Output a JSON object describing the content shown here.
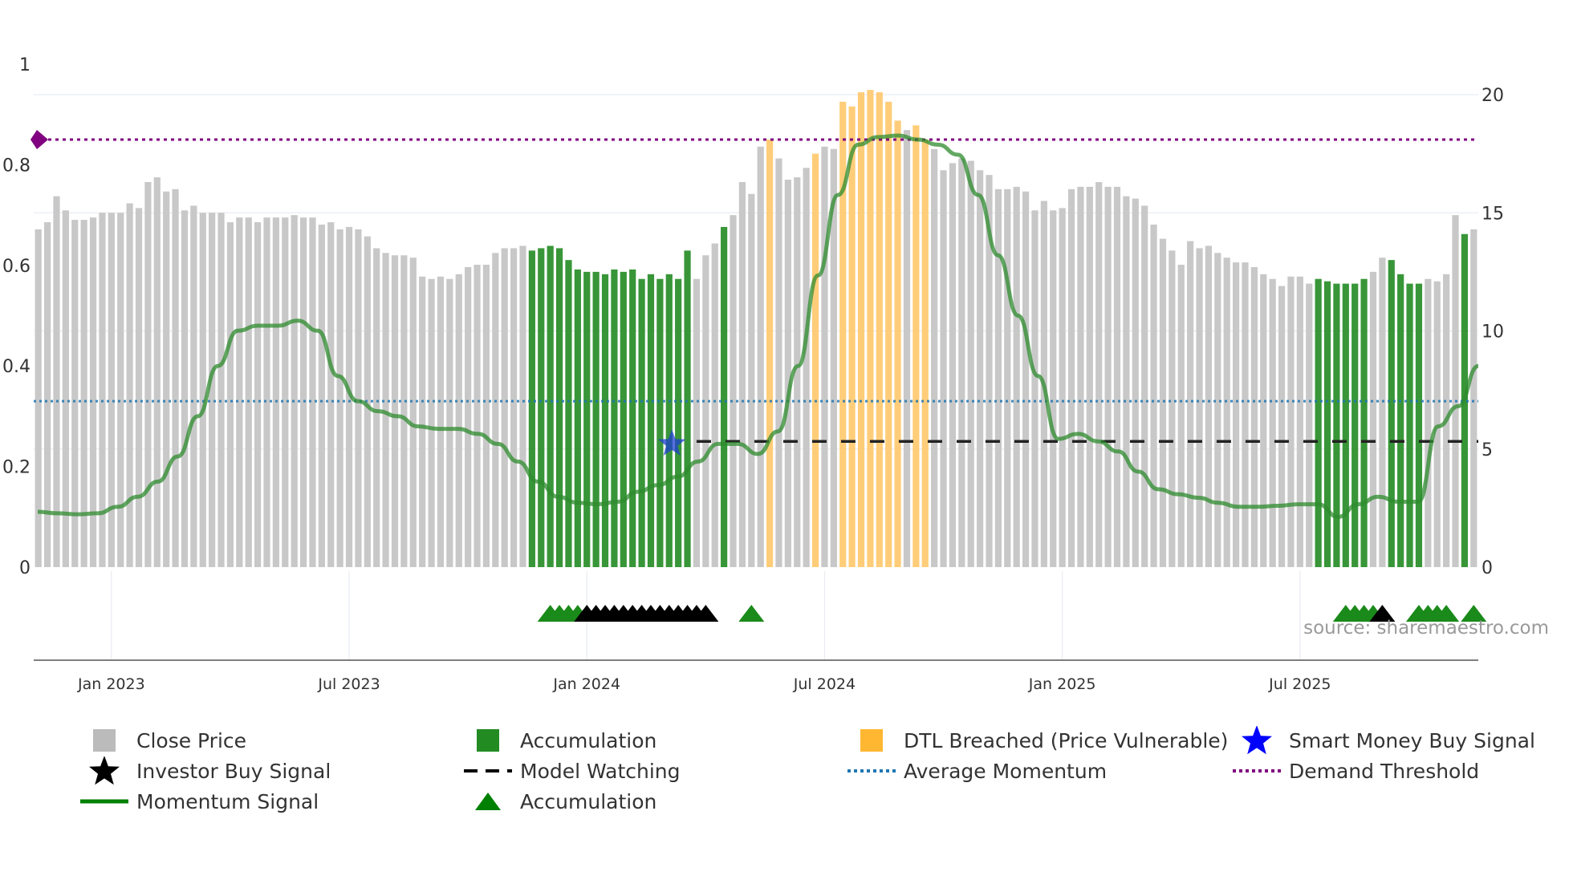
{
  "chart_data": {
    "type": "bar",
    "title": "",
    "watermark": "source: sharemaestro.com",
    "x_tick_labels": [
      "Jan 2023",
      "Jul 2023",
      "Jan 2024",
      "Jul 2024",
      "Jan 2025",
      "Jul 2025"
    ],
    "left_axis": {
      "range": [
        0,
        1
      ],
      "ticks": [
        "0",
        "0.2",
        "0.4",
        "0.6",
        "0.8",
        "1"
      ]
    },
    "right_axis": {
      "range": [
        0,
        20
      ],
      "ticks": [
        "0",
        "5",
        "10",
        "15",
        "20"
      ]
    },
    "close_price_weekly": [
      14.3,
      14.6,
      15.7,
      15.1,
      14.7,
      14.7,
      14.8,
      15.0,
      15.0,
      15.0,
      15.4,
      15.2,
      16.3,
      16.5,
      15.9,
      16.0,
      15.1,
      15.3,
      15.0,
      15.0,
      15.0,
      14.6,
      14.8,
      14.8,
      14.6,
      14.8,
      14.8,
      14.8,
      14.9,
      14.8,
      14.8,
      14.5,
      14.6,
      14.3,
      14.4,
      14.3,
      14.0,
      13.5,
      13.3,
      13.2,
      13.2,
      13.1,
      12.3,
      12.2,
      12.3,
      12.2,
      12.4,
      12.7,
      12.8,
      12.8,
      13.3,
      13.5,
      13.5,
      13.6,
      13.4,
      13.5,
      13.6,
      13.5,
      13.0,
      12.6,
      12.5,
      12.5,
      12.4,
      12.6,
      12.5,
      12.6,
      12.2,
      12.4,
      12.2,
      12.4,
      12.2,
      13.4,
      12.2,
      13.2,
      13.7,
      14.4,
      14.9,
      16.3,
      15.8,
      17.8,
      18.1,
      17.3,
      16.4,
      16.5,
      16.9,
      17.5,
      17.8,
      17.7,
      19.7,
      19.5,
      20.1,
      20.2,
      20.1,
      19.7,
      18.9,
      18.5,
      18.7,
      18.1,
      17.7,
      16.8,
      17.1,
      17.3,
      17.2,
      16.8,
      16.6,
      16.0,
      16.0,
      16.1,
      15.9,
      15.1,
      15.5,
      15.1,
      15.2,
      16.0,
      16.1,
      16.1,
      16.3,
      16.1,
      16.1,
      15.7,
      15.6,
      15.3,
      14.5,
      13.9,
      13.4,
      12.8,
      13.8,
      13.5,
      13.6,
      13.3,
      13.1,
      12.9,
      12.9,
      12.7,
      12.4,
      12.2,
      11.9,
      12.3,
      12.3,
      12.0,
      12.2,
      12.1,
      12.0,
      12.0,
      12.0,
      12.2,
      12.5,
      13.1,
      13.0,
      12.4,
      12.0,
      12.0,
      12.2,
      12.1,
      12.4,
      14.9,
      14.1,
      14.3
    ],
    "accumulation_weeks": [
      54,
      55,
      56,
      57,
      58,
      59,
      60,
      61,
      62,
      63,
      64,
      65,
      66,
      67,
      68,
      69,
      70,
      71,
      75,
      140,
      141,
      142,
      143,
      144,
      145,
      148,
      149,
      150,
      151,
      156
    ],
    "dtl_breached_weeks": [
      80,
      85,
      88,
      89,
      90,
      91,
      92,
      93,
      94,
      96,
      97
    ],
    "momentum_signal": [
      0.11,
      0.107,
      0.105,
      0.107,
      0.12,
      0.14,
      0.17,
      0.22,
      0.3,
      0.4,
      0.47,
      0.48,
      0.48,
      0.49,
      0.47,
      0.38,
      0.33,
      0.31,
      0.3,
      0.28,
      0.275,
      0.275,
      0.265,
      0.245,
      0.21,
      0.17,
      0.14,
      0.128,
      0.125,
      0.13,
      0.15,
      0.163,
      0.18,
      0.21,
      0.245,
      0.245,
      0.225,
      0.27,
      0.4,
      0.58,
      0.74,
      0.84,
      0.855,
      0.858,
      0.85,
      0.84,
      0.82,
      0.74,
      0.62,
      0.5,
      0.38,
      0.255,
      0.265,
      0.25,
      0.23,
      0.19,
      0.155,
      0.145,
      0.138,
      0.128,
      0.12,
      0.12,
      0.122,
      0.125,
      0.125,
      0.1,
      0.125,
      0.14,
      0.13,
      0.13,
      0.28,
      0.32,
      0.4
    ],
    "average_momentum": 0.33,
    "demand_threshold": 0.85,
    "model_watching_level": 0.25,
    "smart_money_buy_signal_week": 70,
    "marker_row": {
      "accumulation_triangles": [
        56,
        57,
        58,
        59,
        78,
        143,
        144,
        145,
        146,
        151,
        152,
        153,
        154,
        157
      ],
      "investor_buy_signals": [
        60,
        61,
        62,
        63,
        64,
        65,
        66,
        67,
        68,
        69,
        70,
        71,
        72,
        73,
        147
      ]
    },
    "legend": [
      {
        "label": "Close Price",
        "color": "#bbbbbb",
        "symbol": "square"
      },
      {
        "label": "Accumulation",
        "color": "#228b22",
        "symbol": "square"
      },
      {
        "label": "DTL Breached (Price Vulnerable)",
        "color": "#ffb732",
        "symbol": "square"
      },
      {
        "label": "Smart Money Buy Signal",
        "color": "#0000ff",
        "symbol": "star"
      },
      {
        "label": "Investor Buy Signal",
        "color": "#000000",
        "symbol": "star"
      },
      {
        "label": "Model Watching",
        "color": "#000000",
        "symbol": "dashed-line"
      },
      {
        "label": "Average Momentum",
        "color": "#1f77b4",
        "symbol": "dotted-line"
      },
      {
        "label": "Demand Threshold",
        "color": "#800080",
        "symbol": "dotted-line"
      },
      {
        "label": "Momentum Signal",
        "color": "#008000",
        "symbol": "line"
      },
      {
        "label": "Accumulation",
        "color": "#008000",
        "symbol": "triangle"
      }
    ]
  }
}
